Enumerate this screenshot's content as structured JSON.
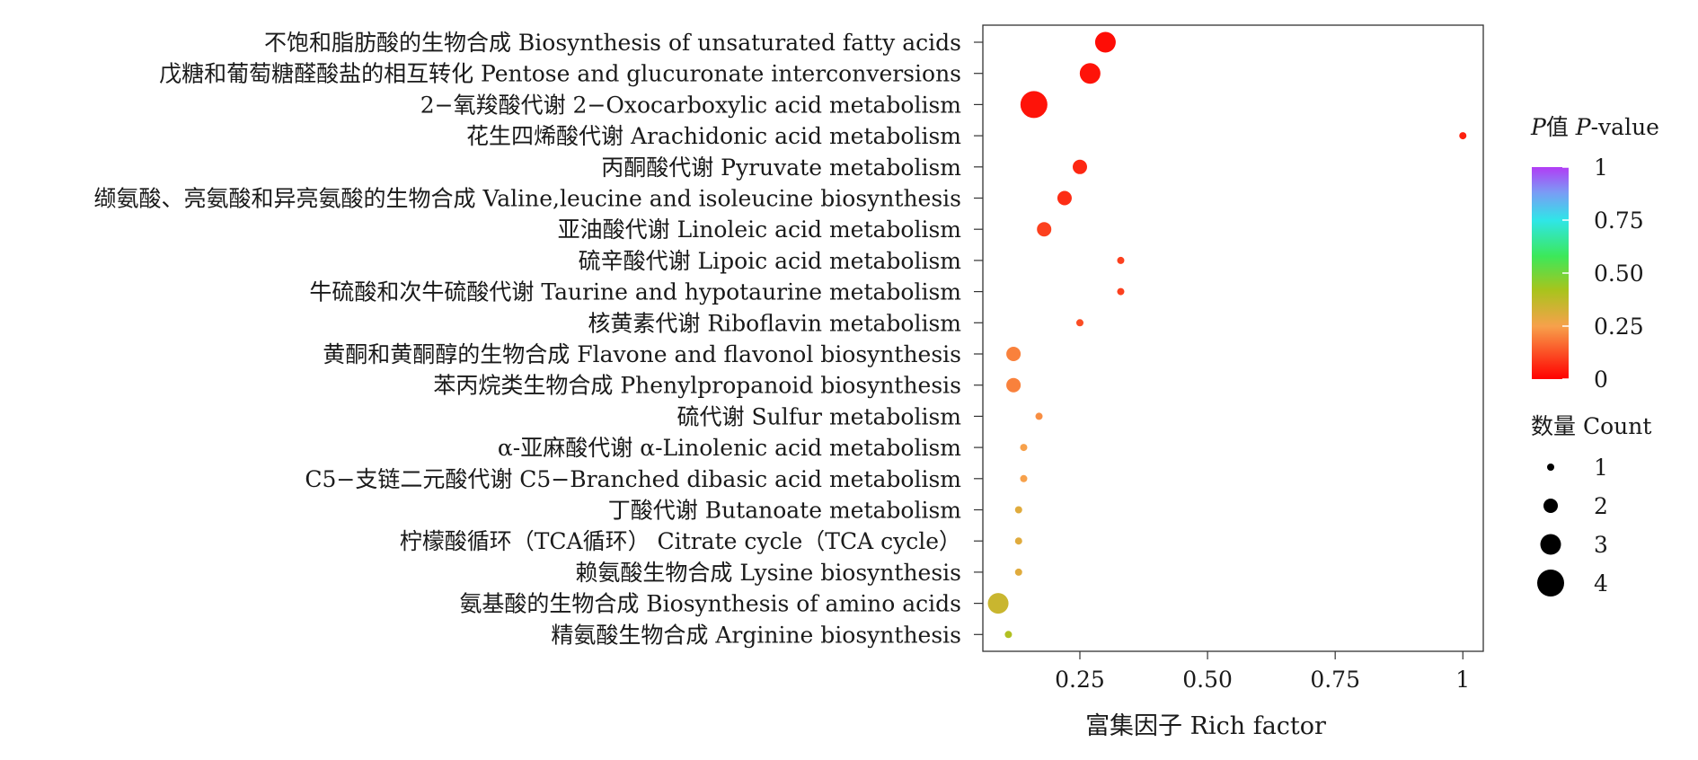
{
  "chart_data": {
    "type": "scatter",
    "xlabel": "富集因子 Rich factor",
    "ylabel": "",
    "xlim": [
      0.06,
      1.04
    ],
    "x_ticks": [
      {
        "value": 0.25,
        "label": "0.25"
      },
      {
        "value": 0.5,
        "label": "0.50"
      },
      {
        "value": 0.75,
        "label": "0.75"
      },
      {
        "value": 1,
        "label": "1"
      }
    ],
    "grid": false,
    "categories": [
      "不饱和脂肪酸的生物合成 Biosynthesis of unsaturated fatty acids",
      "戊糖和葡萄糖醛酸盐的相互转化 Pentose and glucuronate interconversions",
      "2−氧羧酸代谢 2−Oxocarboxylic acid metabolism",
      "花生四烯酸代谢 Arachidonic acid metabolism",
      "丙酮酸代谢 Pyruvate metabolism",
      "缬氨酸、亮氨酸和异亮氨酸的生物合成 Valine,leucine and isoleucine biosynthesis",
      "亚油酸代谢 Linoleic acid metabolism",
      "硫辛酸代谢 Lipoic acid metabolism",
      "牛硫酸和次牛硫酸代谢 Taurine and hypotaurine metabolism",
      "核黄素代谢 Riboflavin metabolism",
      "黄酮和黄酮醇的生物合成 Flavone and flavonol biosynthesis",
      "苯丙烷类生物合成 Phenylpropanoid biosynthesis",
      "硫代谢 Sulfur metabolism",
      "α-亚麻酸代谢 α-Linolenic acid metabolism",
      "C5−支链二元酸代谢 C5−Branched dibasic acid metabolism",
      "丁酸代谢 Butanoate metabolism",
      "柠檬酸循环（TCA循环） Citrate cycle（TCA cycle）",
      "赖氨酸生物合成 Lysine biosynthesis",
      "氨基酸的生物合成 Biosynthesis of amino acids",
      "精氨酸生物合成 Arginine biosynthesis"
    ],
    "points": [
      {
        "rich_factor": 0.3,
        "count": 3,
        "p_value": 0.02
      },
      {
        "rich_factor": 0.27,
        "count": 3,
        "p_value": 0.03
      },
      {
        "rich_factor": 0.16,
        "count": 4,
        "p_value": 0.03
      },
      {
        "rich_factor": 1.0,
        "count": 1,
        "p_value": 0.05
      },
      {
        "rich_factor": 0.25,
        "count": 2,
        "p_value": 0.06
      },
      {
        "rich_factor": 0.22,
        "count": 2,
        "p_value": 0.07
      },
      {
        "rich_factor": 0.18,
        "count": 2,
        "p_value": 0.1
      },
      {
        "rich_factor": 0.33,
        "count": 1,
        "p_value": 0.1
      },
      {
        "rich_factor": 0.33,
        "count": 1,
        "p_value": 0.1
      },
      {
        "rich_factor": 0.25,
        "count": 1,
        "p_value": 0.12
      },
      {
        "rich_factor": 0.12,
        "count": 2,
        "p_value": 0.2
      },
      {
        "rich_factor": 0.12,
        "count": 2,
        "p_value": 0.2
      },
      {
        "rich_factor": 0.17,
        "count": 1,
        "p_value": 0.22
      },
      {
        "rich_factor": 0.14,
        "count": 1,
        "p_value": 0.25
      },
      {
        "rich_factor": 0.14,
        "count": 1,
        "p_value": 0.25
      },
      {
        "rich_factor": 0.13,
        "count": 1,
        "p_value": 0.3
      },
      {
        "rich_factor": 0.13,
        "count": 1,
        "p_value": 0.3
      },
      {
        "rich_factor": 0.13,
        "count": 1,
        "p_value": 0.3
      },
      {
        "rich_factor": 0.09,
        "count": 3,
        "p_value": 0.35
      },
      {
        "rich_factor": 0.11,
        "count": 1,
        "p_value": 0.4
      }
    ],
    "color_legend": {
      "title_italic_1": "P",
      "title_mid": "值 ",
      "title_italic_2": "P",
      "title_end": "-value",
      "ticks": [
        {
          "value": 1,
          "label": "1"
        },
        {
          "value": 0.75,
          "label": "0.75"
        },
        {
          "value": 0.5,
          "label": "0.50"
        },
        {
          "value": 0.25,
          "label": "0.25"
        },
        {
          "value": 0,
          "label": "0"
        }
      ],
      "gradient_stops": [
        {
          "value": 0,
          "color": "#ff0000"
        },
        {
          "value": 0.25,
          "color": "#f7a14b"
        },
        {
          "value": 0.42,
          "color": "#a8c41c"
        },
        {
          "value": 0.58,
          "color": "#3ce85a"
        },
        {
          "value": 0.75,
          "color": "#2fe6e8"
        },
        {
          "value": 0.88,
          "color": "#7a9cf5"
        },
        {
          "value": 1,
          "color": "#b23cf5"
        }
      ]
    },
    "size_legend": {
      "title": "数量 Count",
      "entries": [
        {
          "count": 1,
          "label": "1"
        },
        {
          "count": 2,
          "label": "2"
        },
        {
          "count": 3,
          "label": "3"
        },
        {
          "count": 4,
          "label": "4"
        }
      ]
    }
  }
}
